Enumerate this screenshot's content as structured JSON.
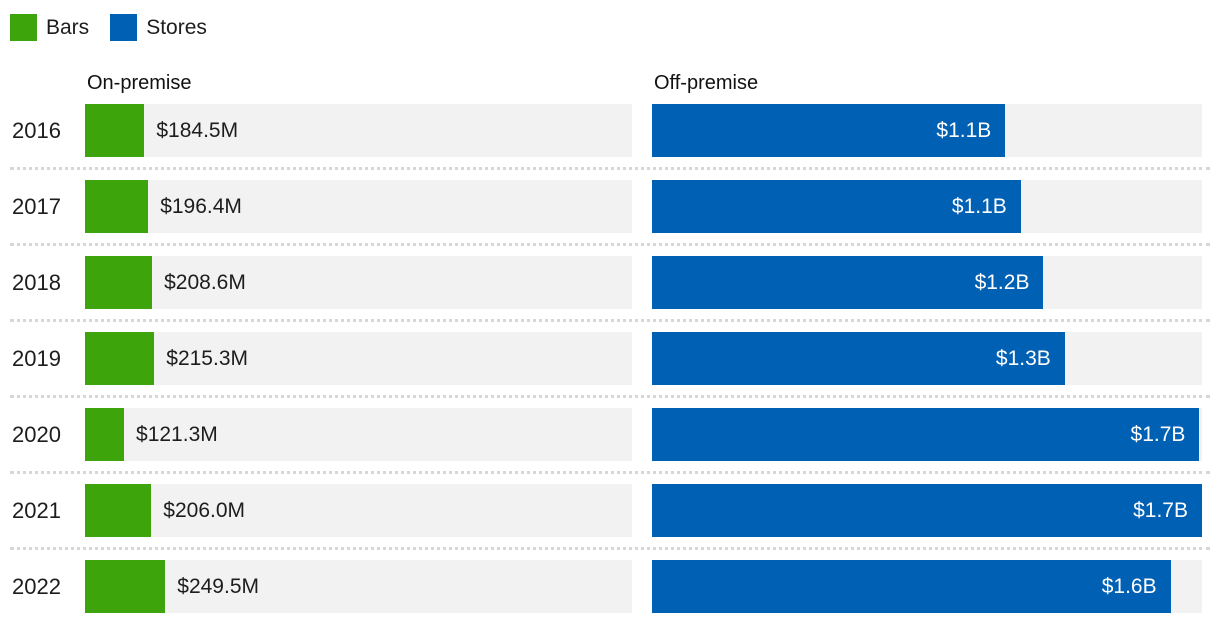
{
  "legend": {
    "items": [
      {
        "label": "Bars",
        "color": "#3ea40b"
      },
      {
        "label": "Stores",
        "color": "#0060b4"
      }
    ]
  },
  "chart_data": {
    "type": "bar",
    "orientation": "horizontal",
    "title": "",
    "columns": [
      {
        "header": "On-premise",
        "series": "Bars",
        "unit": "USD millions"
      },
      {
        "header": "Off-premise",
        "series": "Stores",
        "unit": "USD billions"
      }
    ],
    "scale_max_usd_m": 1700,
    "categories": [
      "2016",
      "2017",
      "2018",
      "2019",
      "2020",
      "2021",
      "2022"
    ],
    "rows": [
      {
        "year": "2016",
        "on_label": "$184.5M",
        "on_value_m": 184.5,
        "off_label": "$1.1B",
        "off_value_m": 1092
      },
      {
        "year": "2017",
        "on_label": "$196.4M",
        "on_value_m": 196.4,
        "off_label": "$1.1B",
        "off_value_m": 1140
      },
      {
        "year": "2018",
        "on_label": "$208.6M",
        "on_value_m": 208.6,
        "off_label": "$1.2B",
        "off_value_m": 1210
      },
      {
        "year": "2019",
        "on_label": "$215.3M",
        "on_value_m": 215.3,
        "off_label": "$1.3B",
        "off_value_m": 1276
      },
      {
        "year": "2020",
        "on_label": "$121.3M",
        "on_value_m": 121.3,
        "off_label": "$1.7B",
        "off_value_m": 1692
      },
      {
        "year": "2021",
        "on_label": "$206.0M",
        "on_value_m": 206.0,
        "off_label": "$1.7B",
        "off_value_m": 1700
      },
      {
        "year": "2022",
        "on_label": "$249.5M",
        "on_value_m": 249.5,
        "off_label": "$1.6B",
        "off_value_m": 1603
      }
    ],
    "colors": {
      "bars": "#3ea40b",
      "stores": "#0060b4",
      "track": "#f2f2f2"
    },
    "layout": {
      "grid": "off",
      "legend_position": "top-left",
      "row_divider": "dotted"
    }
  }
}
